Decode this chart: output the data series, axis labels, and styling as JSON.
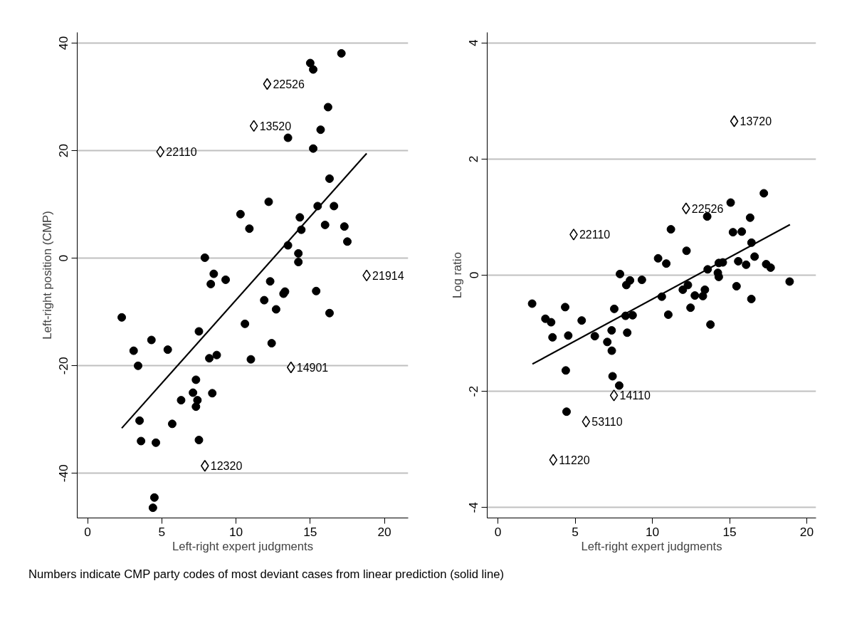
{
  "chart_data": [
    {
      "type": "scatter",
      "xlabel": "Left-right expert judgments",
      "ylabel": "Left-right position (CMP)",
      "xlim": [
        -0.7,
        21.6
      ],
      "ylim": [
        -48.3,
        42
      ],
      "xticks": [
        0,
        5,
        10,
        15,
        20
      ],
      "yticks": [
        -40,
        -20,
        0,
        20,
        40
      ],
      "grid": "y",
      "series": [
        {
          "color": "#000000",
          "marker": "circle",
          "x": [
            2.3,
            3.1,
            3.4,
            3.5,
            3.6,
            4.3,
            4.6,
            4.5,
            4.4,
            5.4,
            5.7,
            6.3,
            7.1,
            7.3,
            7.3,
            7.4,
            7.5,
            7.5,
            7.9,
            8.2,
            8.4,
            8.7,
            8.5,
            8.3,
            9.3,
            10.3,
            10.6,
            10.9,
            11.0,
            11.9,
            12.2,
            12.3,
            12.4,
            12.7,
            13.2,
            13.3,
            13.5,
            13.5,
            14.2,
            14.2,
            14.3,
            14.4,
            15.0,
            15.2,
            15.2,
            15.4,
            15.5,
            15.7,
            16.0,
            16.2,
            16.3,
            16.3,
            16.6,
            17.1,
            17.3,
            17.5
          ],
          "values": [
            -11.0,
            -17.2,
            -20.0,
            -30.2,
            -34.0,
            -15.2,
            -34.3,
            -44.5,
            -46.4,
            -17.0,
            -30.8,
            -26.4,
            -25.0,
            -22.6,
            -27.6,
            -26.4,
            -33.8,
            -13.6,
            0.1,
            -18.6,
            -25.1,
            -18.0,
            -2.9,
            -4.8,
            -4.0,
            8.2,
            -12.2,
            5.5,
            -18.8,
            -7.8,
            10.5,
            -4.3,
            -15.8,
            -9.5,
            -6.6,
            -6.2,
            2.4,
            22.4,
            0.9,
            -0.7,
            7.6,
            5.3,
            36.3,
            20.4,
            35.1,
            -6.1,
            9.7,
            23.9,
            6.2,
            28.1,
            14.8,
            -10.2,
            9.7,
            38.1,
            5.9,
            3.1
          ]
        },
        {
          "color": "#000000",
          "marker": "diamond",
          "x": [
            12.1,
            11.2,
            4.9,
            18.8,
            13.7,
            7.9
          ],
          "values": [
            32.4,
            24.6,
            19.8,
            -3.2,
            -20.3,
            -38.6
          ]
        },
        {
          "type": "line",
          "color": "#000000",
          "line_style": "solid",
          "marker": "none",
          "x": [
            2.3,
            18.8
          ],
          "values": [
            -31.6,
            19.5
          ]
        }
      ],
      "annotations": [
        {
          "text": "22526",
          "x": 12.1,
          "y": 32.4
        },
        {
          "text": "13520",
          "x": 11.2,
          "y": 24.6
        },
        {
          "text": "22110",
          "x": 4.9,
          "y": 19.8
        },
        {
          "text": "21914",
          "x": 18.8,
          "y": -3.2
        },
        {
          "text": "14901",
          "x": 13.7,
          "y": -20.3
        },
        {
          "text": "12320",
          "x": 7.9,
          "y": -38.6
        }
      ]
    },
    {
      "type": "scatter",
      "xlabel": "Left-right expert judgments",
      "ylabel": "Log ratio",
      "xlim": [
        -0.7,
        20.6
      ],
      "ylim": [
        -4.18,
        4.18
      ],
      "xticks": [
        0,
        5,
        10,
        15,
        20
      ],
      "yticks": [
        -4,
        -2,
        0,
        2,
        4
      ],
      "grid": "y",
      "series": [
        {
          "color": "#000000",
          "marker": "circle",
          "x": [
            2.21,
            3.07,
            3.44,
            3.53,
            4.35,
            4.55,
            5.42,
            6.27,
            7.08,
            7.36,
            7.53,
            7.37,
            8.26,
            8.72,
            8.37,
            8.31,
            10.61,
            11.03,
            11.97,
            12.47,
            12.75,
            13.27,
            13.4,
            13.76,
            15.45,
            16.41,
            4.39,
            7.42,
            7.85,
            4.44,
            7.9,
            8.55,
            9.32,
            10.37,
            10.9,
            11.2,
            12.21,
            12.3,
            13.58,
            13.55,
            14.24,
            14.3,
            14.3,
            14.56,
            15.07,
            15.22,
            15.56,
            15.79,
            16.07,
            16.33,
            16.42,
            16.62,
            17.22,
            17.37,
            17.66,
            18.89
          ],
          "values": [
            -0.49,
            -0.75,
            -0.81,
            -1.07,
            -0.55,
            -1.04,
            -0.78,
            -1.05,
            -1.15,
            -0.95,
            -0.58,
            -1.3,
            -0.7,
            -0.69,
            -0.99,
            -0.17,
            -0.37,
            -0.68,
            -0.25,
            -0.56,
            -0.35,
            -0.36,
            -0.25,
            -0.85,
            -0.19,
            -0.41,
            -1.64,
            -1.74,
            -1.9,
            -2.35,
            0.02,
            -0.09,
            -0.08,
            0.29,
            0.2,
            0.79,
            0.42,
            -0.17,
            0.1,
            1.01,
            0.04,
            -0.03,
            0.21,
            0.22,
            1.25,
            0.74,
            0.24,
            0.75,
            0.18,
            0.99,
            0.56,
            0.32,
            1.41,
            0.19,
            0.13,
            -0.11
          ]
        },
        {
          "color": "#000000",
          "marker": "diamond",
          "x": [
            15.3,
            12.18,
            4.9,
            7.51,
            5.7,
            3.58
          ],
          "values": [
            2.65,
            1.15,
            0.7,
            -2.07,
            -2.52,
            -3.18
          ]
        },
        {
          "type": "line",
          "color": "#000000",
          "line_style": "solid",
          "marker": "none",
          "x": [
            2.23,
            18.91
          ],
          "values": [
            -1.53,
            0.87
          ]
        }
      ],
      "annotations": [
        {
          "text": "13720",
          "x": 15.3,
          "y": 2.65
        },
        {
          "text": "22526",
          "x": 12.18,
          "y": 1.15
        },
        {
          "text": "22110",
          "x": 4.9,
          "y": 0.7
        },
        {
          "text": "14110",
          "x": 7.51,
          "y": -2.07
        },
        {
          "text": "53110",
          "x": 5.7,
          "y": -2.52
        },
        {
          "text": "11220",
          "x": 3.58,
          "y": -3.18
        }
      ]
    },
    {
      "type": "other",
      "annotations": [
        "Numbers indicate CMP party codes of most deviant cases from linear prediction (solid line)"
      ]
    }
  ]
}
